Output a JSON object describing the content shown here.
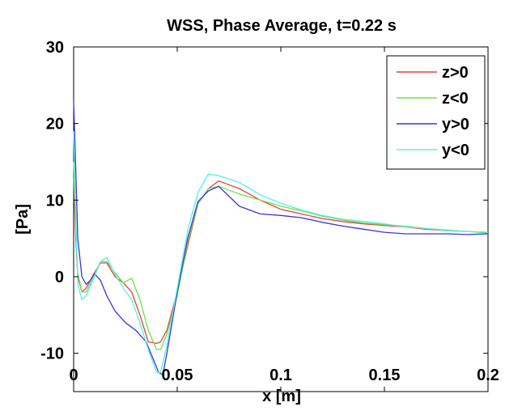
{
  "chart_data": {
    "type": "line",
    "title": "WSS, Phase Average, t=0.22 s",
    "xlabel": "x [m]",
    "ylabel": "[Pa]",
    "xlim": [
      0,
      0.2
    ],
    "ylim": [
      -15,
      30
    ],
    "xticks": [
      0,
      0.05,
      0.1,
      0.15,
      0.2
    ],
    "xtick_labels": [
      "0",
      "0.05",
      "0.1",
      "0.15",
      "0.2"
    ],
    "yticks": [
      -10,
      0,
      10,
      20,
      30
    ],
    "ytick_labels": [
      "-10",
      "0",
      "10",
      "20",
      "30"
    ],
    "grid": false,
    "legend_position": "top-right",
    "series": [
      {
        "name": "z>0",
        "color": "#e8413a",
        "x": [
          0,
          0.001,
          0.002,
          0.004,
          0.006,
          0.01,
          0.013,
          0.016,
          0.02,
          0.024,
          0.028,
          0.032,
          0.036,
          0.04,
          0.042,
          0.045,
          0.05,
          0.055,
          0.06,
          0.065,
          0.07,
          0.08,
          0.09,
          0.1,
          0.11,
          0.12,
          0.13,
          0.14,
          0.15,
          0.16,
          0.17,
          0.18,
          0.19,
          0.2
        ],
        "y": [
          13,
          5,
          0,
          -2,
          -1.5,
          0.5,
          1.8,
          1.8,
          0,
          -0.8,
          -2,
          -5,
          -8.5,
          -8.7,
          -8.5,
          -7,
          -2,
          4,
          9.5,
          11.5,
          12.5,
          11.5,
          10,
          8.8,
          8.2,
          7.6,
          7.2,
          6.9,
          6.7,
          6.5,
          6.2,
          6.0,
          5.9,
          5.8
        ]
      },
      {
        "name": "z<0",
        "color": "#6ee04a",
        "x": [
          0,
          0.001,
          0.002,
          0.004,
          0.006,
          0.01,
          0.013,
          0.016,
          0.02,
          0.024,
          0.028,
          0.032,
          0.036,
          0.04,
          0.042,
          0.045,
          0.05,
          0.055,
          0.06,
          0.065,
          0.07,
          0.08,
          0.09,
          0.1,
          0.11,
          0.12,
          0.13,
          0.14,
          0.15,
          0.16,
          0.17,
          0.18,
          0.19,
          0.2
        ],
        "y": [
          15,
          6,
          0.5,
          -2,
          -2,
          0.2,
          2,
          2,
          0.5,
          -0.8,
          -0.2,
          -3,
          -7,
          -9.5,
          -9.5,
          -7.5,
          -2.5,
          4.5,
          9.5,
          11.5,
          11.8,
          10.8,
          10,
          9.2,
          8.6,
          7.9,
          7.4,
          7.0,
          6.8,
          6.6,
          6.3,
          6.1,
          5.9,
          5.7
        ]
      },
      {
        "name": "y>0",
        "color": "#3a36d6",
        "x": [
          0,
          0.001,
          0.002,
          0.004,
          0.006,
          0.008,
          0.01,
          0.013,
          0.016,
          0.02,
          0.025,
          0.03,
          0.035,
          0.038,
          0.041,
          0.043,
          0.045,
          0.05,
          0.055,
          0.06,
          0.065,
          0.07,
          0.075,
          0.08,
          0.09,
          0.1,
          0.11,
          0.12,
          0.13,
          0.14,
          0.15,
          0.16,
          0.17,
          0.18,
          0.19,
          0.2
        ],
        "y": [
          23,
          14,
          5,
          0,
          -1,
          -0.5,
          0.4,
          -0.5,
          -2.5,
          -4.5,
          -6,
          -7,
          -8.5,
          -10.5,
          -12.5,
          -12.8,
          -10,
          -2,
          5,
          9.8,
          11.2,
          11.8,
          10.5,
          9.2,
          8.2,
          8.0,
          7.7,
          7.1,
          6.6,
          6.2,
          5.8,
          5.6,
          5.6,
          5.6,
          5.5,
          5.6
        ]
      },
      {
        "name": "y<0",
        "color": "#53f0ec",
        "x": [
          0,
          0.001,
          0.002,
          0.004,
          0.006,
          0.01,
          0.013,
          0.016,
          0.02,
          0.024,
          0.028,
          0.032,
          0.036,
          0.04,
          0.042,
          0.045,
          0.05,
          0.055,
          0.06,
          0.065,
          0.07,
          0.08,
          0.09,
          0.1,
          0.11,
          0.12,
          0.13,
          0.14,
          0.15,
          0.16,
          0.17,
          0.18,
          0.19,
          0.2
        ],
        "y": [
          19,
          8,
          -1,
          -3,
          -2.5,
          0,
          2,
          2.5,
          0.3,
          -1.5,
          -3,
          -6,
          -9.5,
          -12.5,
          -12.5,
          -9,
          -1.5,
          6,
          11,
          13.4,
          13.2,
          12.3,
          10.7,
          9.6,
          8.7,
          8.0,
          7.5,
          7.2,
          6.9,
          6.5,
          6.3,
          6.0,
          5.9,
          5.8
        ]
      }
    ]
  }
}
